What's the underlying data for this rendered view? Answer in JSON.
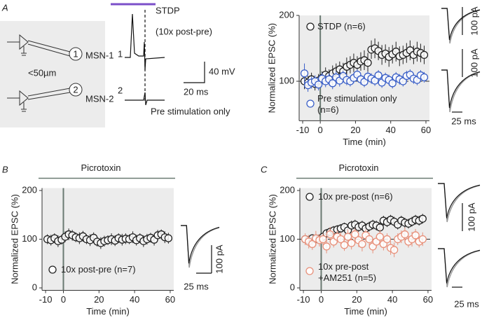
{
  "panel_labels": [
    "A",
    "B",
    "C"
  ],
  "diagram": {
    "cells": [
      {
        "label": "MSN-1",
        "number": "1"
      },
      {
        "label": "MSN-2",
        "number": "2"
      }
    ],
    "distance": "<50µm"
  },
  "traces": {
    "title": "STDP",
    "subtitle": "(10x post-pre)",
    "rows": [
      "1",
      "2"
    ],
    "voltage_scale": "40 mV",
    "time_scale": "20 ms",
    "caption": "Pre stimulation only"
  },
  "chart_data": [
    {
      "type": "scatter",
      "xlabel": "Time (min)",
      "ylabel": "Normalized EPSC (%)",
      "xlim": [
        -12,
        62
      ],
      "ylim": [
        40,
        200
      ],
      "xticks": [
        -10,
        0,
        20,
        40,
        60
      ],
      "yticks": [
        100,
        200
      ],
      "vline": 0,
      "hline": 100,
      "inset_current": "100 pA",
      "inset_time": "25 ms",
      "x": [
        -9,
        -7,
        -5,
        -3,
        -1,
        1,
        3,
        5,
        7,
        9,
        11,
        13,
        15,
        17,
        19,
        21,
        23,
        25,
        27,
        29,
        31,
        33,
        35,
        37,
        39,
        41,
        43,
        45,
        47,
        49,
        51,
        53,
        55,
        57,
        59
      ],
      "series": [
        {
          "name": "STDP (n=6)",
          "color": "#222222",
          "values": [
            100,
            98,
            103,
            96,
            101,
            105,
            110,
            108,
            112,
            115,
            118,
            115,
            122,
            125,
            128,
            125,
            130,
            132,
            128,
            148,
            150,
            146,
            140,
            142,
            137,
            141,
            145,
            138,
            140,
            143,
            147,
            140,
            145,
            143,
            140
          ],
          "errors": [
            12,
            10,
            10,
            10,
            10,
            10,
            11,
            10,
            12,
            12,
            12,
            13,
            14,
            13,
            14,
            13,
            14,
            15,
            15,
            14,
            15,
            14,
            15,
            14,
            15,
            14,
            15,
            15,
            14,
            15,
            15,
            14,
            15,
            14,
            14
          ]
        },
        {
          "name": "Pre stimulation only\n(n=6)",
          "color": "#3a5fc8",
          "values": [
            112,
            94,
            98,
            100,
            95,
            104,
            100,
            103,
            97,
            106,
            101,
            108,
            102,
            100,
            105,
            110,
            103,
            99,
            107,
            104,
            101,
            109,
            98,
            105,
            102,
            97,
            106,
            103,
            100,
            108,
            110,
            104,
            102,
            109,
            106
          ],
          "errors": [
            15,
            10,
            9,
            9,
            9,
            9,
            9,
            9,
            9,
            9,
            9,
            8,
            8,
            8,
            8,
            8,
            8,
            8,
            8,
            8,
            8,
            8,
            8,
            8,
            8,
            8,
            8,
            8,
            8,
            8,
            8,
            8,
            8,
            8,
            8
          ]
        }
      ]
    },
    {
      "type": "scatter",
      "xlabel": "Time (min)",
      "ylabel": "Normalized EPSC (%)",
      "annotation": "Picrotoxin",
      "xlim": [
        -12,
        62
      ],
      "ylim": [
        -5,
        205
      ],
      "xticks": [
        -10,
        0,
        20,
        40,
        60
      ],
      "yticks": [
        0,
        100,
        200
      ],
      "vline": 0,
      "inset_current": "100 pA",
      "inset_time": "25 ms",
      "x": [
        -9,
        -7,
        -5,
        -3,
        -1,
        1,
        3,
        5,
        7,
        9,
        11,
        13,
        15,
        17,
        19,
        21,
        23,
        25,
        27,
        29,
        31,
        33,
        35,
        37,
        39,
        41,
        43,
        45,
        47,
        49,
        51,
        53,
        55,
        57,
        59
      ],
      "series": [
        {
          "name": "10x post-pre (n=7)",
          "color": "#222222",
          "values": [
            100,
            98,
            102,
            96,
            99,
            105,
            110,
            108,
            104,
            102,
            106,
            100,
            98,
            103,
            95,
            92,
            96,
            98,
            100,
            97,
            102,
            99,
            101,
            100,
            104,
            98,
            102,
            96,
            100,
            103,
            99,
            108,
            110,
            104,
            102
          ],
          "errors": [
            10,
            11,
            10,
            12,
            10,
            11,
            12,
            11,
            10,
            12,
            11,
            10,
            12,
            11,
            10,
            12,
            11,
            10,
            12,
            11,
            10,
            12,
            11,
            10,
            12,
            11,
            10,
            12,
            11,
            10,
            12,
            11,
            10,
            12,
            11
          ]
        }
      ]
    },
    {
      "type": "scatter",
      "xlabel": "Time (min)",
      "ylabel": "Normalized EPSC (%)",
      "annotation": "Picrotoxin",
      "xlim": [
        -12,
        62
      ],
      "ylim": [
        -5,
        205
      ],
      "xticks": [
        -10,
        0,
        20,
        40,
        60
      ],
      "yticks": [
        0,
        100,
        200
      ],
      "vline": 0,
      "hline": 100,
      "inset_current": "100 pA",
      "inset_time": "25 ms",
      "x": [
        -9,
        -7,
        -5,
        -3,
        -1,
        1,
        3,
        5,
        7,
        9,
        11,
        13,
        15,
        17,
        19,
        21,
        23,
        25,
        27,
        29,
        31,
        33,
        35,
        37,
        39,
        41,
        43,
        45,
        47,
        49,
        51,
        53,
        55,
        57
      ],
      "series": [
        {
          "name": "10x pre-post (n=6)",
          "color": "#222222",
          "values": [
            100,
            98,
            102,
            100,
            101,
            105,
            112,
            115,
            118,
            120,
            122,
            125,
            118,
            128,
            130,
            125,
            128,
            122,
            126,
            130,
            128,
            124,
            138,
            135,
            140,
            136,
            130,
            138,
            134,
            132,
            136,
            140,
            138,
            142
          ],
          "errors": [
            8,
            8,
            8,
            8,
            8,
            8,
            9,
            9,
            9,
            9,
            9,
            9,
            9,
            10,
            10,
            10,
            10,
            10,
            10,
            10,
            10,
            10,
            10,
            10,
            10,
            10,
            10,
            10,
            10,
            10,
            10,
            10,
            10,
            10
          ]
        },
        {
          "name": "10x pre-post\n+AM251 (n=5)",
          "color": "#e8907a",
          "values": [
            100,
            95,
            90,
            102,
            98,
            100,
            85,
            110,
            95,
            105,
            100,
            88,
            105,
            92,
            110,
            98,
            90,
            108,
            100,
            85,
            95,
            105,
            90,
            100,
            82,
            78,
            100,
            105,
            110,
            95,
            100,
            108,
            95,
            100
          ],
          "errors": [
            12,
            14,
            12,
            15,
            13,
            12,
            14,
            15,
            12,
            13,
            14,
            12,
            15,
            13,
            12,
            14,
            15,
            12,
            13,
            14,
            12,
            15,
            13,
            12,
            14,
            15,
            12,
            13,
            14,
            12,
            15,
            13,
            12,
            14
          ]
        }
      ]
    }
  ]
}
